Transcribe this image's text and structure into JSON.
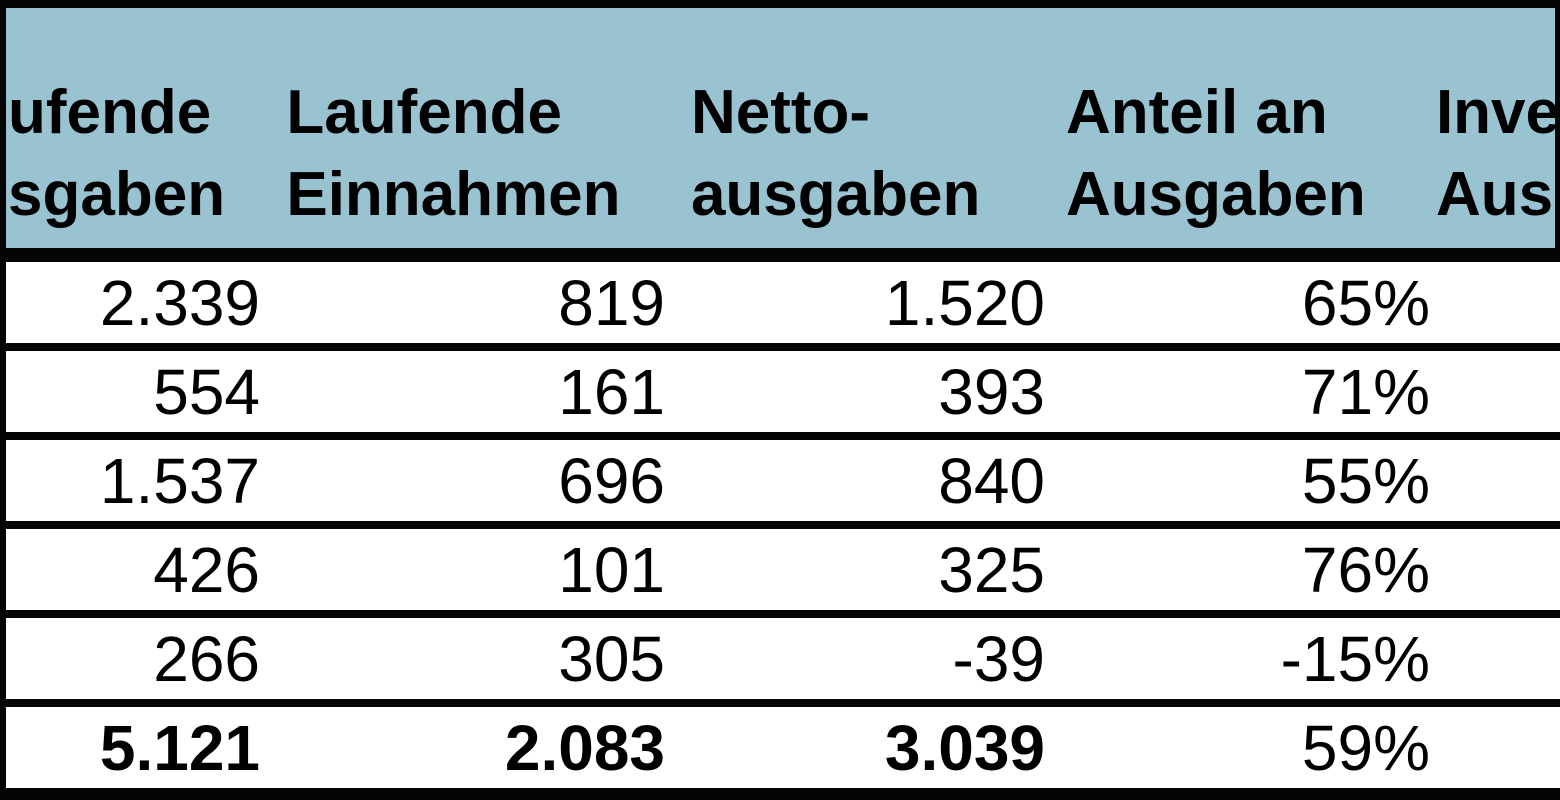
{
  "chart_data": {
    "type": "table",
    "title": "",
    "header": {
      "columns": [
        {
          "line1": "ufende",
          "line2": "sgaben"
        },
        {
          "line1": "Laufende",
          "line2": "Einnahmen"
        },
        {
          "line1": "Netto-",
          "line2": "ausgaben"
        },
        {
          "line1": "Anteil an",
          "line2": "Ausgaben"
        },
        {
          "line1": "Inve",
          "line2": "Aus"
        }
      ]
    },
    "rows": [
      {
        "is_total": false,
        "values": [
          "2.339",
          "819",
          "1.520",
          "65%",
          ""
        ]
      },
      {
        "is_total": false,
        "values": [
          "554",
          "161",
          "393",
          "71%",
          ""
        ]
      },
      {
        "is_total": false,
        "values": [
          "1.537",
          "696",
          "840",
          "55%",
          ""
        ]
      },
      {
        "is_total": false,
        "values": [
          "426",
          "101",
          "325",
          "76%",
          ""
        ]
      },
      {
        "is_total": false,
        "values": [
          "266",
          "305",
          "-39",
          "-15%",
          ""
        ]
      },
      {
        "is_total": true,
        "values": [
          "5.121",
          "2.083",
          "3.039",
          "59%",
          ""
        ]
      }
    ],
    "numeric_rows": [
      [
        2339,
        819,
        1520,
        65
      ],
      [
        554,
        161,
        393,
        71
      ],
      [
        1537,
        696,
        840,
        55
      ],
      [
        426,
        101,
        325,
        76
      ],
      [
        266,
        305,
        -39,
        -15
      ],
      [
        5121,
        2083,
        3039,
        59
      ]
    ],
    "layout_hints": {
      "grid": "horizontal-rules-only",
      "clipped_columns": "first column clipped at left edge, last column clipped at right edge"
    }
  },
  "colors": {
    "header_bg": "#9ac3d2",
    "border": "#050505",
    "row_bg": "#ffffff",
    "text": "#000000"
  }
}
